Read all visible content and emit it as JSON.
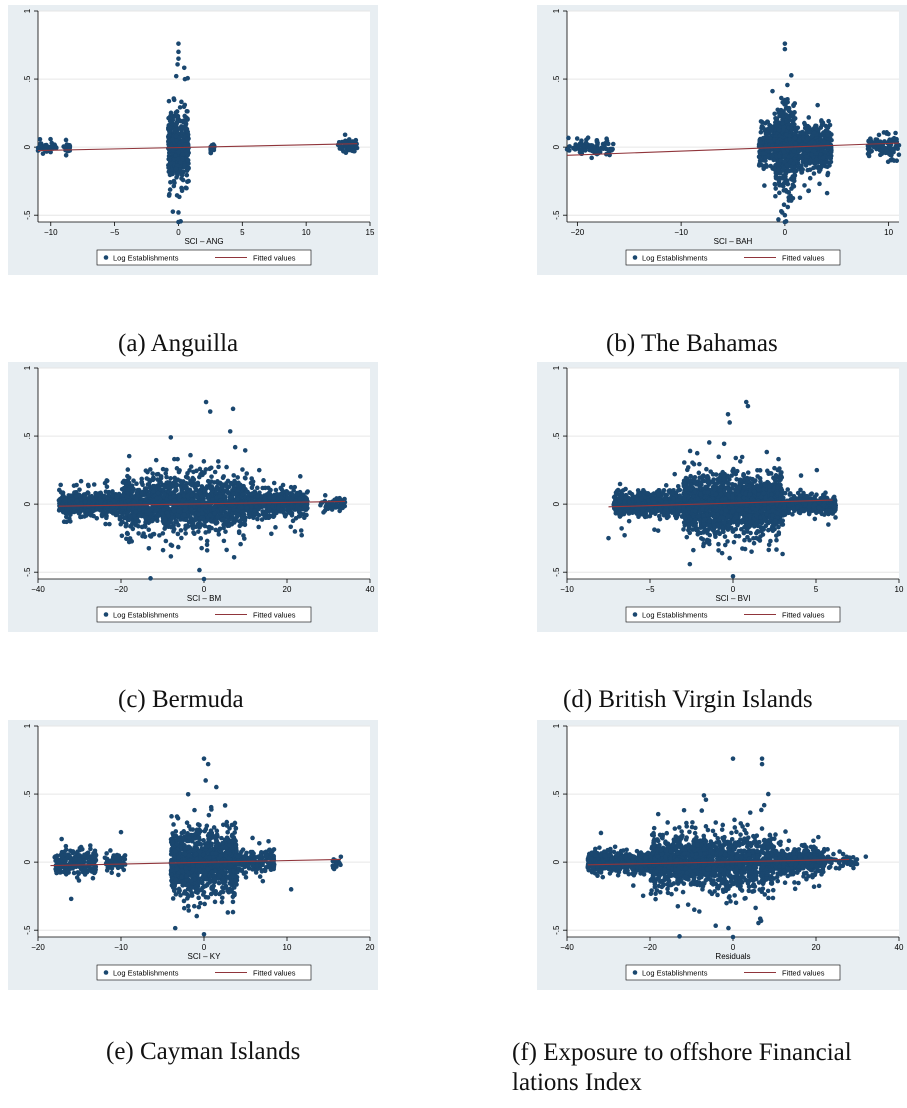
{
  "colors": {
    "panel_bg": "#e8eef2",
    "plot_bg": "#ffffff",
    "dot": "#1a476f",
    "fit_line": "#90353b",
    "grid": "#e6e6e6",
    "axis": "#000000"
  },
  "legend": {
    "dot_label": "Log Establishments",
    "line_label": "Fitted values"
  },
  "captions": [
    "(a) Anguilla",
    "(b) The Bahamas",
    "(c) Bermuda",
    "(d) British Virgin Islands",
    "(e) Cayman Islands",
    "(f) Exposure to offshore Financial lations Index"
  ],
  "chart_data": [
    {
      "type": "scatter",
      "xlabel": "SCI – ANG",
      "ylabel": "",
      "xlim": [
        -11,
        15
      ],
      "ylim": [
        -0.55,
        1.0
      ],
      "xticks": [
        -10,
        -5,
        0,
        5,
        10,
        15
      ],
      "yticks": [
        -0.5,
        0,
        0.5,
        1
      ],
      "ytick_labels": [
        "-.5",
        "0",
        ".5",
        "1"
      ],
      "grid": true,
      "legend_position": "bottom",
      "series": [
        {
          "name": "Log Establishments",
          "style": "markers",
          "clusters": [
            {
              "x": [
                -11,
                -9.5
              ],
              "y_sd": 0.02,
              "n": 40
            },
            {
              "x": [
                -9,
                -8.5
              ],
              "y_sd": 0.02,
              "n": 20
            },
            {
              "x": [
                -0.8,
                0.8
              ],
              "y_sd": 0.12,
              "n": 420
            },
            {
              "x": [
                2.5,
                2.8
              ],
              "y_sd": 0.02,
              "n": 15
            },
            {
              "x": [
                12.5,
                14
              ],
              "y_sd": 0.03,
              "n": 40
            }
          ],
          "outliers": [
            [
              0,
              0.76
            ],
            [
              0,
              0.7
            ],
            [
              0,
              0.65
            ],
            [
              0,
              -0.55
            ],
            [
              0,
              -0.48
            ]
          ]
        },
        {
          "name": "Fitted values",
          "style": "line",
          "x": [
            -11,
            14
          ],
          "y": [
            -0.025,
            0.025
          ]
        }
      ]
    },
    {
      "type": "scatter",
      "xlabel": "SCI – BAH",
      "ylabel": "",
      "xlim": [
        -21,
        11
      ],
      "ylim": [
        -0.55,
        1.0
      ],
      "xticks": [
        -20,
        -10,
        0,
        10
      ],
      "yticks": [
        -0.5,
        0,
        0.5,
        1
      ],
      "ytick_labels": [
        "-.5",
        "0",
        ".5",
        "1"
      ],
      "grid": true,
      "legend_position": "bottom",
      "series": [
        {
          "name": "Log Establishments",
          "style": "markers",
          "clusters": [
            {
              "x": [
                -21,
                -16.5
              ],
              "y_sd": 0.03,
              "n": 90
            },
            {
              "x": [
                -2.5,
                4.5
              ],
              "y_sd": 0.08,
              "n": 900
            },
            {
              "x": [
                -1,
                1
              ],
              "y_sd": 0.15,
              "n": 380
            },
            {
              "x": [
                8,
                11
              ],
              "y_sd": 0.04,
              "n": 120
            }
          ],
          "outliers": [
            [
              0,
              0.76
            ],
            [
              0,
              0.72
            ],
            [
              0,
              -0.55
            ],
            [
              0,
              -0.5
            ],
            [
              2.3,
              -0.32
            ]
          ]
        },
        {
          "name": "Fitted values",
          "style": "line",
          "x": [
            -21,
            11
          ],
          "y": [
            -0.06,
            0.03
          ]
        }
      ]
    },
    {
      "type": "scatter",
      "xlabel": "SCI – BM",
      "ylabel": "",
      "xlim": [
        -40,
        40
      ],
      "ylim": [
        -0.55,
        1.0
      ],
      "xticks": [
        -40,
        -20,
        0,
        20,
        40
      ],
      "yticks": [
        -0.5,
        0,
        0.5,
        1
      ],
      "ytick_labels": [
        "-.5",
        "0",
        ".5",
        "1"
      ],
      "grid": true,
      "legend_position": "bottom",
      "series": [
        {
          "name": "Log Establishments",
          "style": "markers",
          "clusters": [
            {
              "x": [
                -35,
                -20
              ],
              "y_sd": 0.04,
              "n": 500
            },
            {
              "x": [
                -20,
                10
              ],
              "y_sd": 0.09,
              "n": 1500
            },
            {
              "x": [
                10,
                25
              ],
              "y_sd": 0.05,
              "n": 450
            },
            {
              "x": [
                28,
                34
              ],
              "y_sd": 0.025,
              "n": 60
            }
          ],
          "outliers": [
            [
              0.5,
              0.75
            ],
            [
              7,
              0.7
            ],
            [
              -8,
              0.49
            ],
            [
              1.5,
              0.68
            ],
            [
              0,
              -0.55
            ]
          ]
        },
        {
          "name": "Fitted values",
          "style": "line",
          "x": [
            -35,
            34
          ],
          "y": [
            -0.015,
            0.02
          ]
        }
      ]
    },
    {
      "type": "scatter",
      "xlabel": "SCI – BVI",
      "ylabel": "",
      "xlim": [
        -10,
        10
      ],
      "ylim": [
        -0.55,
        1.0
      ],
      "xticks": [
        -10,
        -5,
        0,
        5,
        10
      ],
      "yticks": [
        -0.5,
        0,
        0.5,
        1
      ],
      "ytick_labels": [
        "-.5",
        "0",
        ".5",
        "1"
      ],
      "grid": true,
      "legend_position": "bottom",
      "series": [
        {
          "name": "Log Establishments",
          "style": "markers",
          "clusters": [
            {
              "x": [
                -7.2,
                -3
              ],
              "y_sd": 0.04,
              "n": 700
            },
            {
              "x": [
                -3,
                3
              ],
              "y_sd": 0.1,
              "n": 1700
            },
            {
              "x": [
                3,
                6.2
              ],
              "y_sd": 0.03,
              "n": 450
            }
          ],
          "outliers": [
            [
              0.8,
              0.75
            ],
            [
              0.9,
              0.72
            ],
            [
              -0.3,
              0.66
            ],
            [
              -0.2,
              0.6
            ],
            [
              0,
              -0.53
            ],
            [
              -7.5,
              -0.25
            ]
          ]
        },
        {
          "name": "Fitted values",
          "style": "line",
          "x": [
            -7.5,
            6
          ],
          "y": [
            -0.02,
            0.03
          ]
        }
      ]
    },
    {
      "type": "scatter",
      "xlabel": "SCI – KY",
      "ylabel": "",
      "xlim": [
        -20,
        20
      ],
      "ylim": [
        -0.55,
        1.0
      ],
      "xticks": [
        -20,
        -10,
        0,
        10,
        20
      ],
      "yticks": [
        -0.5,
        0,
        0.5,
        1
      ],
      "ytick_labels": [
        "-.5",
        "0",
        ".5",
        "1"
      ],
      "grid": true,
      "legend_position": "bottom",
      "series": [
        {
          "name": "Log Establishments",
          "style": "markers",
          "clusters": [
            {
              "x": [
                -18,
                -13
              ],
              "y_sd": 0.04,
              "n": 240
            },
            {
              "x": [
                -12,
                -9.5
              ],
              "y_sd": 0.03,
              "n": 70
            },
            {
              "x": [
                -4,
                4
              ],
              "y_sd": 0.11,
              "n": 1100
            },
            {
              "x": [
                4,
                8.5
              ],
              "y_sd": 0.04,
              "n": 160
            },
            {
              "x": [
                15.5,
                16.5
              ],
              "y_sd": 0.02,
              "n": 20
            }
          ],
          "outliers": [
            [
              0,
              0.76
            ],
            [
              0.5,
              0.72
            ],
            [
              0.2,
              0.6
            ],
            [
              0,
              -0.53
            ],
            [
              -16,
              -0.27
            ],
            [
              -10,
              0.22
            ],
            [
              10.5,
              -0.2
            ]
          ]
        },
        {
          "name": "Fitted values",
          "style": "line",
          "x": [
            -18.5,
            16.5
          ],
          "y": [
            -0.025,
            0.02
          ]
        }
      ]
    },
    {
      "type": "scatter",
      "xlabel": "Residuals",
      "ylabel": "",
      "xlim": [
        -40,
        40
      ],
      "ylim": [
        -0.55,
        1.0
      ],
      "xticks": [
        -40,
        -20,
        0,
        20,
        40
      ],
      "yticks": [
        -0.5,
        0,
        0.5,
        1
      ],
      "ytick_labels": [
        "-.5",
        "0",
        ".5",
        "1"
      ],
      "grid": true,
      "legend_position": "bottom",
      "series": [
        {
          "name": "Log Establishments",
          "style": "markers",
          "clusters": [
            {
              "x": [
                -35,
                -20
              ],
              "y_sd": 0.035,
              "n": 500
            },
            {
              "x": [
                -20,
                10
              ],
              "y_sd": 0.09,
              "n": 1500
            },
            {
              "x": [
                10,
                22
              ],
              "y_sd": 0.045,
              "n": 400
            },
            {
              "x": [
                22,
                30
              ],
              "y_sd": 0.025,
              "n": 50
            }
          ],
          "outliers": [
            [
              0,
              0.76
            ],
            [
              7,
              0.76
            ],
            [
              -7,
              0.49
            ],
            [
              7,
              0.72
            ],
            [
              0,
              -0.55
            ],
            [
              8.5,
              0.5
            ],
            [
              32,
              0.04
            ]
          ]
        },
        {
          "name": "Fitted values",
          "style": "line",
          "x": [
            -35,
            28
          ],
          "y": [
            -0.02,
            0.02
          ]
        }
      ]
    }
  ]
}
